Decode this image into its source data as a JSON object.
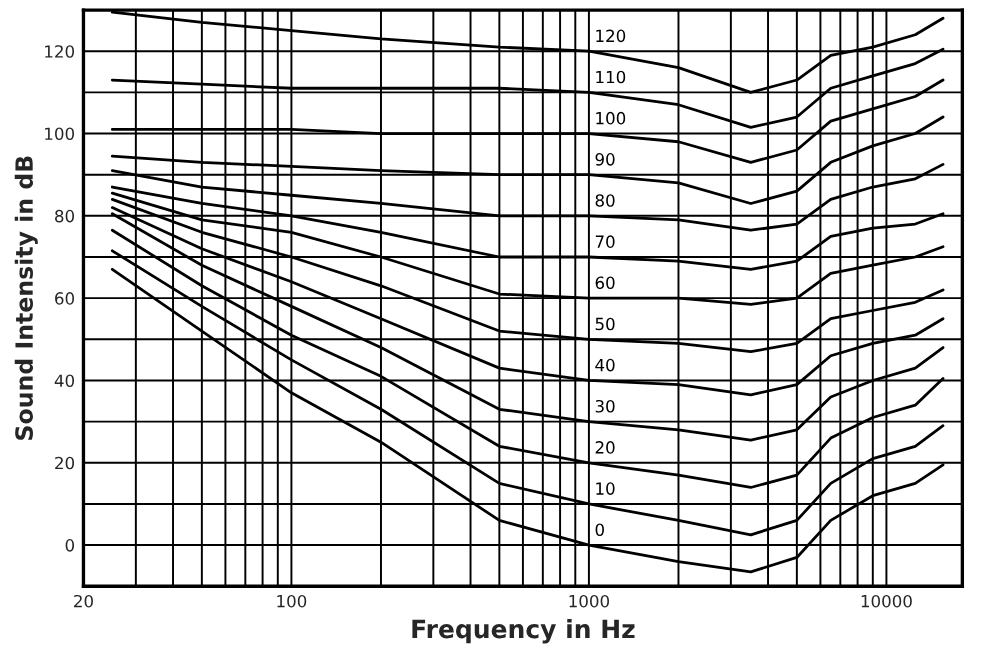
{
  "chart_data": {
    "type": "line",
    "xlabel": "Frequency in Hz",
    "ylabel": "Sound Intensity in dB",
    "x": [
      25,
      50,
      100,
      200,
      500,
      1000,
      2000,
      3500,
      5000,
      6500,
      9000,
      12500,
      15500
    ],
    "series": [
      {
        "name": "0",
        "color": "#000000",
        "values": [
          67,
          52,
          37,
          25,
          6,
          0,
          -4,
          -6.5,
          -3,
          6,
          12,
          15,
          19.5
        ]
      },
      {
        "name": "10",
        "color": "#000000",
        "values": [
          71.5,
          58,
          45,
          33,
          15,
          10,
          6,
          2.5,
          6,
          15,
          21,
          24,
          29
        ]
      },
      {
        "name": "20",
        "color": "#000000",
        "values": [
          76.5,
          63,
          51,
          41,
          24,
          20,
          17,
          14,
          17,
          26,
          31,
          34,
          40.5
        ]
      },
      {
        "name": "30",
        "color": "#000000",
        "values": [
          80.5,
          68,
          58,
          48,
          33,
          30,
          28,
          25.5,
          28,
          36,
          40,
          43,
          48
        ]
      },
      {
        "name": "40",
        "color": "#000000",
        "values": [
          82,
          72,
          64,
          55,
          43,
          40,
          39,
          36.5,
          39,
          46,
          49,
          51,
          55
        ]
      },
      {
        "name": "50",
        "color": "#000000",
        "values": [
          84,
          76,
          70,
          63,
          52,
          50,
          49,
          47,
          49,
          55,
          57,
          59,
          62
        ]
      },
      {
        "name": "60",
        "color": "#000000",
        "values": [
          85.5,
          79,
          76,
          70,
          61,
          60,
          60,
          58.5,
          60,
          66,
          68,
          70,
          72.5
        ]
      },
      {
        "name": "70",
        "color": "#000000",
        "values": [
          87,
          83,
          80,
          76,
          70,
          70,
          69,
          67,
          69,
          75,
          77,
          78,
          80.5
        ]
      },
      {
        "name": "80",
        "color": "#000000",
        "values": [
          91,
          87,
          85,
          83,
          80,
          80,
          79,
          76.5,
          78,
          84,
          87,
          89,
          92.5
        ]
      },
      {
        "name": "90",
        "color": "#000000",
        "values": [
          94.5,
          93,
          92,
          91,
          90,
          90,
          88,
          83,
          86,
          93,
          97,
          100,
          104
        ]
      },
      {
        "name": "100",
        "color": "#000000",
        "values": [
          101,
          101,
          101,
          100,
          100,
          100,
          98,
          93,
          96,
          103,
          106,
          109,
          113
        ]
      },
      {
        "name": "110",
        "color": "#000000",
        "values": [
          113,
          112,
          111,
          111,
          111,
          110,
          107,
          101.5,
          104,
          111,
          114,
          117,
          120.5
        ]
      },
      {
        "name": "120",
        "color": "#000000",
        "values": [
          129.5,
          127,
          125,
          123,
          121,
          120,
          116,
          110,
          113,
          119,
          121,
          124,
          128
        ]
      }
    ],
    "log": "x",
    "grid": true,
    "xlim": [
      20,
      18000
    ],
    "ylim": [
      -10,
      130
    ],
    "xticks": [
      20,
      {
        "value": 30,
        "label": null
      },
      {
        "value": 40,
        "label": null
      },
      {
        "value": 50,
        "label": null
      },
      {
        "value": 60,
        "label": null
      },
      {
        "value": 70,
        "label": null
      },
      {
        "value": 80,
        "label": null
      },
      {
        "value": 90,
        "label": null
      },
      100,
      {
        "value": 200,
        "label": null
      },
      {
        "value": 300,
        "label": null
      },
      {
        "value": 400,
        "label": null
      },
      {
        "value": 500,
        "label": null
      },
      {
        "value": 600,
        "label": null
      },
      {
        "value": 700,
        "label": null
      },
      {
        "value": 800,
        "label": null
      },
      {
        "value": 900,
        "label": null
      },
      1000,
      {
        "value": 2000,
        "label": null
      },
      {
        "value": 3000,
        "label": null
      },
      {
        "value": 4000,
        "label": null
      },
      {
        "value": 5000,
        "label": null
      },
      {
        "value": 6000,
        "label": null
      },
      {
        "value": 7000,
        "label": null
      },
      {
        "value": 8000,
        "label": null
      },
      {
        "value": 9000,
        "label": null
      },
      10000
    ],
    "yticks": [
      {
        "value": -10,
        "label": null
      },
      0,
      {
        "value": 10,
        "label": null
      },
      20,
      {
        "value": 30,
        "label": null
      },
      40,
      {
        "value": 50,
        "label": null
      },
      60,
      {
        "value": 70,
        "label": null
      },
      80,
      {
        "value": 90,
        "label": null
      },
      100,
      {
        "value": 110,
        "label": null
      },
      120,
      {
        "value": 130,
        "label": null
      }
    ]
  }
}
